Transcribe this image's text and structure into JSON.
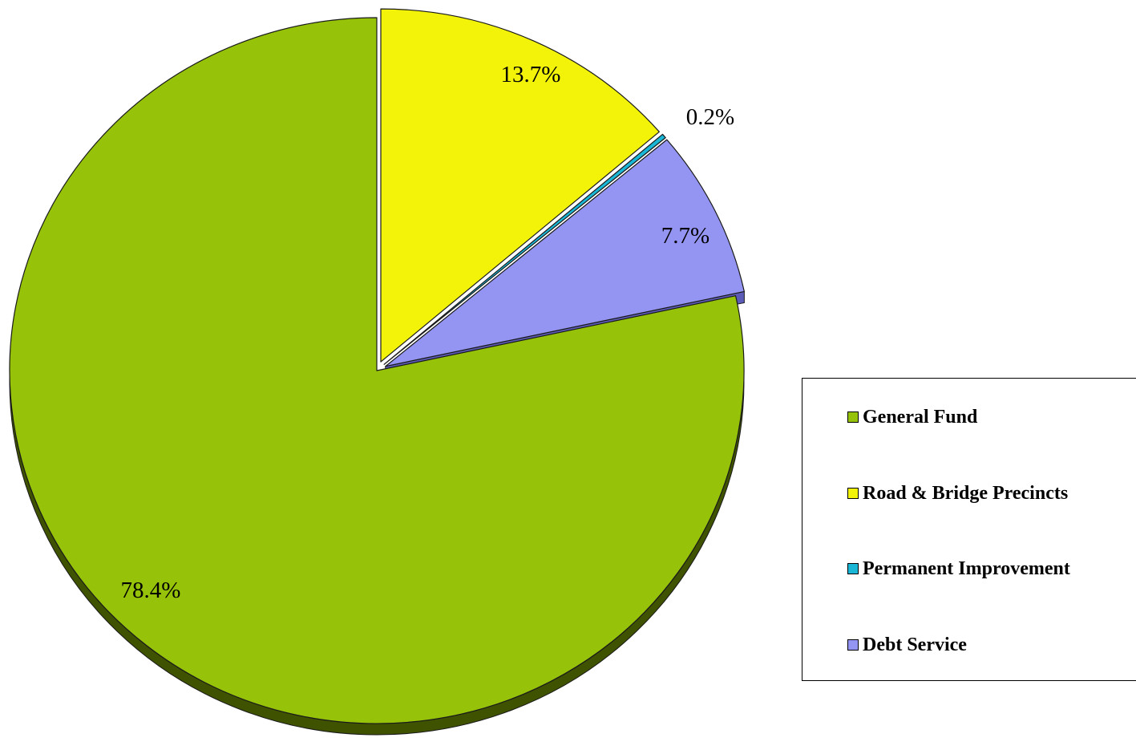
{
  "chart_data": {
    "type": "pie",
    "title": "",
    "slices": [
      {
        "name": "General Fund",
        "value": 78.4,
        "label": "78.4%",
        "color": "#96c30a",
        "side_color": "#3f5200",
        "exploded": false
      },
      {
        "name": "Road & Bridge Precincts",
        "value": 13.7,
        "label": "13.7%",
        "color": "#f3f30a",
        "side_color": "#8a8a00",
        "exploded": true
      },
      {
        "name": "Permanent Improvement",
        "value": 0.2,
        "label": "0.2%",
        "color": "#1ab6d6",
        "side_color": "#0b5c6c",
        "exploded": true
      },
      {
        "name": "Debt Service",
        "value": 7.7,
        "label": "7.7%",
        "color": "#9494f2",
        "side_color": "#5c5cb8",
        "exploded": true
      }
    ],
    "legend_position": "right"
  }
}
